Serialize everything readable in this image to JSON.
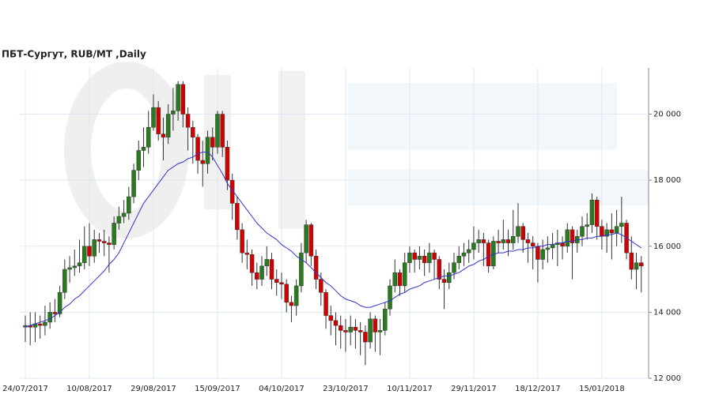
{
  "chart_data": {
    "type": "candlestick",
    "title": "ПБТ-Сургут,  RUB/MT ,Daily",
    "categories": [
      "24/07/2017",
      null,
      null,
      null,
      null,
      null,
      null,
      null,
      null,
      null,
      null,
      null,
      null,
      "10/08/2017",
      null,
      null,
      null,
      null,
      null,
      null,
      null,
      null,
      null,
      null,
      null,
      null,
      "29/08/2017",
      null,
      null,
      null,
      null,
      null,
      null,
      null,
      null,
      null,
      null,
      null,
      null,
      "15/09/2017",
      null,
      null,
      null,
      null,
      null,
      null,
      null,
      null,
      null,
      null,
      null,
      null,
      "04/10/2017",
      null,
      null,
      null,
      null,
      null,
      null,
      null,
      null,
      null,
      null,
      null,
      null,
      "23/10/2017",
      null,
      null,
      null,
      null,
      null,
      null,
      null,
      null,
      null,
      null,
      null,
      null,
      "10/11/2017",
      null,
      null,
      null,
      null,
      null,
      null,
      null,
      null,
      null,
      null,
      null,
      null,
      "29/11/2017",
      null,
      null,
      null,
      null,
      null,
      null,
      null,
      null,
      null,
      null,
      null,
      null,
      "18/12/2017",
      null,
      null,
      null,
      null,
      null,
      null,
      null,
      null,
      null,
      null,
      null,
      null,
      "15/01/2018",
      null,
      null,
      null,
      null,
      null,
      null,
      null,
      null
    ],
    "open": [
      13550,
      13600,
      13550,
      13650,
      13600,
      13700,
      14000,
      13950,
      14600,
      15300,
      15350,
      15400,
      15500,
      16000,
      15700,
      16200,
      16150,
      16100,
      16050,
      16700,
      16900,
      17000,
      17500,
      18300,
      18900,
      19000,
      19600,
      20200,
      19400,
      19300,
      20000,
      20100,
      20900,
      20000,
      19600,
      19300,
      18600,
      18500,
      19300,
      19000,
      20000,
      19000,
      18000,
      17300,
      16500,
      15800,
      15750,
      15200,
      15000,
      15400,
      15600,
      15000,
      14900,
      14850,
      14300,
      14200,
      14800,
      15800,
      16650,
      15700,
      15000,
      14600,
      13900,
      13750,
      13600,
      13450,
      13400,
      13550,
      13450,
      13400,
      13100,
      13800,
      13400,
      13450,
      14100,
      14800,
      15200,
      14800,
      15500,
      15800,
      15600,
      15700,
      15500,
      15800,
      15600,
      15000,
      14900,
      15200,
      15500,
      15700,
      15800,
      15900,
      16100,
      16200,
      16100,
      15400,
      16150,
      16100,
      16200,
      16100,
      16300,
      16600,
      16200,
      16100,
      16000,
      15600,
      15900,
      15950,
      16050,
      16100,
      16000,
      16500,
      16100,
      16300,
      16600,
      16650,
      17400,
      16600,
      16300,
      16500,
      16400,
      16600,
      16700,
      15800,
      15300,
      15500
    ],
    "close": [
      13600,
      13550,
      13650,
      13600,
      13700,
      14000,
      13950,
      14600,
      15300,
      15350,
      15400,
      15500,
      16000,
      15700,
      16200,
      16150,
      16100,
      16050,
      16700,
      16900,
      17000,
      17500,
      18300,
      18900,
      19000,
      19600,
      20200,
      19400,
      19300,
      20000,
      20100,
      20900,
      20000,
      19600,
      19300,
      18600,
      18500,
      19300,
      19000,
      20000,
      19000,
      18000,
      17300,
      16500,
      15800,
      15750,
      15200,
      15000,
      15400,
      15600,
      15000,
      14900,
      14850,
      14300,
      14200,
      14800,
      15800,
      16650,
      15700,
      15000,
      14600,
      13900,
      13750,
      13600,
      13450,
      13400,
      13550,
      13450,
      13400,
      13100,
      13800,
      13400,
      13450,
      14100,
      14800,
      15200,
      14800,
      15500,
      15800,
      15600,
      15700,
      15500,
      15800,
      15600,
      15000,
      14900,
      15200,
      15500,
      15700,
      15800,
      15900,
      16100,
      16200,
      16100,
      15400,
      16150,
      16100,
      16200,
      16100,
      16300,
      16600,
      16200,
      16100,
      16000,
      15600,
      15900,
      15950,
      16050,
      16100,
      16000,
      16500,
      16100,
      16300,
      16600,
      16650,
      17400,
      16600,
      16300,
      16500,
      16400,
      16600,
      16700,
      15800,
      15300,
      15500,
      15400
    ],
    "high": [
      13900,
      14000,
      14000,
      13900,
      14200,
      14300,
      14400,
      14800,
      15600,
      15700,
      15900,
      16200,
      16600,
      16700,
      16500,
      16400,
      16500,
      16300,
      16900,
      17200,
      17400,
      17800,
      18500,
      19200,
      19600,
      20100,
      20600,
      20400,
      19900,
      20300,
      20800,
      21000,
      21000,
      20200,
      19800,
      19400,
      19200,
      19500,
      19600,
      20100,
      20100,
      19200,
      18200,
      17500,
      16700,
      16200,
      15900,
      15500,
      15700,
      16000,
      15800,
      15300,
      15200,
      15000,
      14500,
      15000,
      16100,
      16800,
      16700,
      15900,
      15200,
      14700,
      14200,
      14000,
      13900,
      13800,
      13900,
      13800,
      13700,
      13600,
      14000,
      13900,
      13800,
      14300,
      15000,
      15600,
      15300,
      15800,
      16000,
      15900,
      16000,
      15900,
      16100,
      15900,
      15700,
      15300,
      15500,
      15800,
      16000,
      16100,
      16200,
      16600,
      16500,
      16400,
      16200,
      16300,
      16500,
      16800,
      16500,
      17100,
      17300,
      16700,
      16400,
      16300,
      16100,
      16200,
      16300,
      16400,
      16500,
      16300,
      16700,
      16600,
      16500,
      16900,
      17000,
      17600,
      17500,
      16800,
      16700,
      17000,
      17100,
      17500,
      16800,
      16300,
      15800,
      15700
    ],
    "low": [
      13100,
      13000,
      13100,
      13200,
      13300,
      13500,
      13700,
      13850,
      14400,
      14900,
      15100,
      15200,
      15300,
      15400,
      15500,
      15800,
      15700,
      15200,
      15900,
      16500,
      16700,
      16800,
      17300,
      18000,
      18400,
      18800,
      19500,
      19200,
      18600,
      19100,
      19500,
      19800,
      19600,
      18900,
      18500,
      18200,
      17800,
      18200,
      18600,
      18800,
      18700,
      17700,
      16800,
      16200,
      15500,
      15300,
      14800,
      14700,
      14800,
      15100,
      14700,
      14500,
      14400,
      14000,
      13700,
      13900,
      14600,
      15500,
      15400,
      14700,
      14200,
      13500,
      13300,
      13000,
      12900,
      12800,
      13000,
      12900,
      12700,
      12400,
      12900,
      12800,
      12700,
      13300,
      13900,
      14600,
      14500,
      14600,
      15200,
      15200,
      15300,
      15100,
      15200,
      15000,
      14700,
      14100,
      14700,
      15000,
      15300,
      15400,
      15500,
      15600,
      15800,
      15400,
      15200,
      15300,
      15800,
      15900,
      15700,
      15900,
      16100,
      15800,
      15500,
      15300,
      14900,
      15300,
      15500,
      15600,
      15400,
      15600,
      15800,
      15000,
      15800,
      16000,
      16200,
      16400,
      16200,
      15900,
      15800,
      15600,
      16000,
      16100,
      15600,
      15000,
      14700,
      14600
    ],
    "up_color": "#2a7a1e",
    "down_color": "#d40000",
    "ma": {
      "color": "#3333cc",
      "values": [
        13550,
        13600,
        13650,
        13700,
        13750,
        13800,
        13900,
        14000,
        14150,
        14250,
        14400,
        14500,
        14650,
        14800,
        14950,
        15100,
        15250,
        15450,
        15600,
        15800,
        16100,
        16400,
        16700,
        17000,
        17300,
        17500,
        17700,
        17900,
        18100,
        18300,
        18400,
        18500,
        18550,
        18650,
        18700,
        18800,
        18850,
        18850,
        18700,
        18450,
        18200,
        17900,
        17700,
        17500,
        17300,
        17100,
        16900,
        16700,
        16550,
        16400,
        16300,
        16200,
        16050,
        15950,
        15850,
        15700,
        15600,
        15500,
        15350,
        15200,
        15050,
        14900,
        14800,
        14650,
        14500,
        14400,
        14350,
        14300,
        14200,
        14150,
        14150,
        14200,
        14250,
        14300,
        14350,
        14450,
        14550,
        14600,
        14700,
        14750,
        14800,
        14900,
        14950,
        15000,
        15050,
        15100,
        15100,
        15150,
        15200,
        15300,
        15400,
        15450,
        15550,
        15600,
        15700,
        15750,
        15800,
        15800,
        15850,
        15850,
        15900,
        15900,
        15950,
        15950,
        16000,
        16000,
        16050,
        16050,
        16100,
        16100,
        16150,
        16150,
        16200,
        16200,
        16250,
        16250,
        16300,
        16300,
        16350,
        16350,
        16400,
        16350,
        16250,
        16150,
        16050,
        15950
      ]
    },
    "ylim": [
      12000,
      21400
    ],
    "yticks": [
      {
        "value": 12000,
        "label": "12 000"
      },
      {
        "value": 14000,
        "label": "14 000"
      },
      {
        "value": 16000,
        "label": "16 000"
      },
      {
        "value": 18000,
        "label": "18 000"
      },
      {
        "value": 20000,
        "label": "20 000"
      }
    ],
    "grid": true
  }
}
